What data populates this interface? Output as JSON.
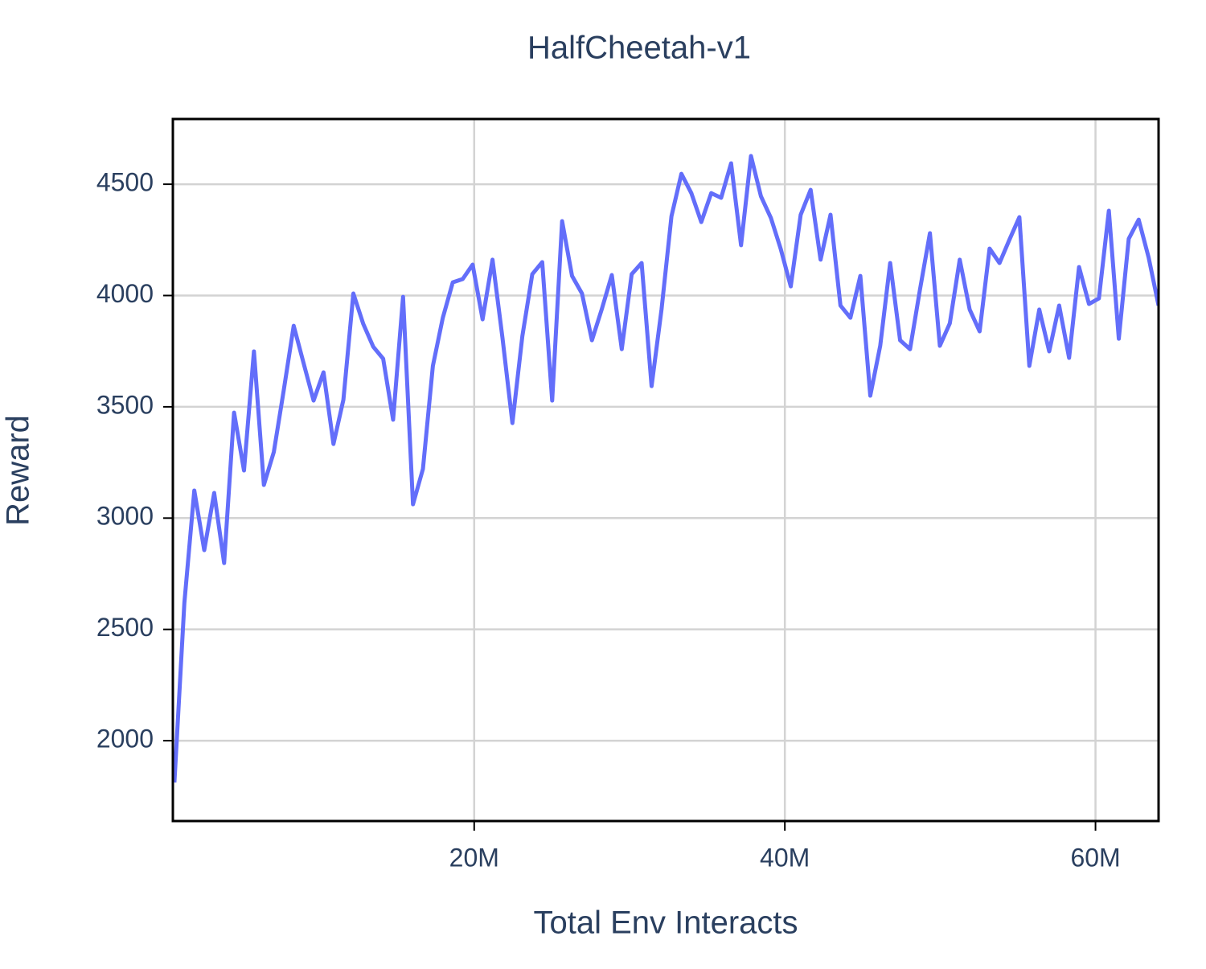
{
  "chart_data": {
    "type": "line",
    "title": "HalfCheetah-v1",
    "x_label": "Total Env Interacts",
    "y_label": "Reward",
    "x": [
      0.7,
      1.34,
      1.98,
      2.62,
      3.26,
      3.9,
      4.54,
      5.18,
      5.82,
      6.46,
      7.1,
      7.74,
      8.38,
      9.02,
      9.66,
      10.3,
      10.94,
      11.58,
      12.22,
      12.86,
      13.5,
      14.14,
      14.78,
      15.42,
      16.06,
      16.7,
      17.34,
      17.98,
      18.62,
      19.26,
      19.9,
      20.54,
      21.18,
      21.82,
      22.46,
      23.1,
      23.74,
      24.38,
      25.02,
      25.66,
      26.3,
      26.94,
      27.58,
      28.22,
      28.86,
      29.5,
      30.14,
      30.78,
      31.42,
      32.06,
      32.7,
      33.34,
      33.98,
      34.62,
      35.26,
      35.9,
      36.54,
      37.18,
      37.82,
      38.46,
      39.1,
      39.74,
      40.38,
      41.02,
      41.66,
      42.3,
      42.94,
      43.58,
      44.22,
      44.86,
      45.5,
      46.14,
      46.78,
      47.42,
      48.06,
      48.7,
      49.34,
      49.98,
      50.62,
      51.26,
      51.9,
      52.54,
      53.18,
      53.82,
      54.46,
      55.1,
      55.74,
      56.38,
      57.02,
      57.66,
      58.3,
      58.94,
      59.58,
      60.22,
      60.86,
      61.5,
      62.14,
      62.78,
      63.42,
      64.06
    ],
    "series": [
      {
        "color": "#636efa",
        "values": [
          1812,
          2618,
          3124,
          2856,
          3113,
          2798,
          3474,
          3214,
          3749,
          3149,
          3297,
          3575,
          3864,
          3695,
          3528,
          3655,
          3333,
          3532,
          4009,
          3872,
          3770,
          3716,
          3442,
          3994,
          3062,
          3221,
          3684,
          3900,
          4059,
          4074,
          4139,
          3893,
          4161,
          3810,
          3427,
          3817,
          4096,
          4150,
          3528,
          4334,
          4088,
          4009,
          3799,
          3940,
          4092,
          3759,
          4096,
          4146,
          3593,
          3937,
          4356,
          4547,
          4460,
          4330,
          4460,
          4439,
          4594,
          4226,
          4627,
          4446,
          4349,
          4208,
          4041,
          4363,
          4475,
          4161,
          4363,
          3955,
          3900,
          4088,
          3550,
          3774,
          4146,
          3799,
          3759,
          4027,
          4280,
          3774,
          3875,
          4161,
          3937,
          3839,
          4211,
          4146,
          4251,
          4352,
          3684,
          3937,
          3749,
          3955,
          3720,
          4128,
          3962,
          3987,
          4381,
          3806,
          4255,
          4341,
          4171,
          3955
        ]
      }
    ],
    "xlim": [
      0.6,
      64.06
    ],
    "ylim": [
      1639,
      4793
    ],
    "xticks": [
      {
        "value": 20,
        "label": "20M"
      },
      {
        "value": 40,
        "label": "40M"
      },
      {
        "value": 60,
        "label": "60M"
      }
    ],
    "yticks": [
      2000,
      2500,
      3000,
      3500,
      4000,
      4500
    ],
    "grid": true
  }
}
